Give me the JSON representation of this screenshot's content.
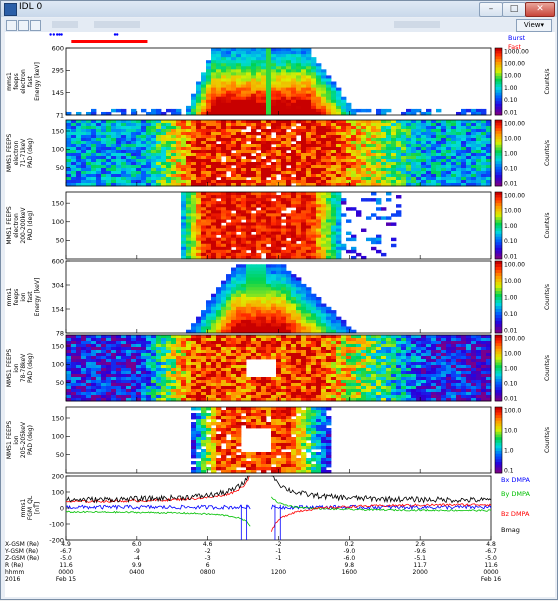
{
  "window": {
    "title": "IDL 0"
  },
  "toolbar": {
    "view_label": "View"
  },
  "legend": {
    "burst": "Burst",
    "fast": "Fast",
    "burst_color": "#0000ff",
    "fast_color": "#ff0000"
  },
  "colors": {
    "bx": "#0000ff",
    "by": "#00c000",
    "bz": "#ff0000",
    "bmag": "#000000"
  },
  "chart_data": [
    {
      "type": "heatmap",
      "id": "p1",
      "ylabel_lines": [
        "mms1",
        "feeps",
        "electron",
        "fast",
        "Energy [keV]"
      ],
      "yticks": [
        "600",
        "295",
        "145",
        "71"
      ],
      "cbar_ticks": [
        "1000.00",
        "100.00",
        "10.00",
        "1.00",
        "0.10",
        "0.01"
      ],
      "cbar_label": "Counts/s",
      "ylim": [
        71,
        600
      ],
      "log_y": true
    },
    {
      "type": "heatmap",
      "id": "p2",
      "ylabel_lines": [
        "MMS1 FEEPS",
        "electron",
        "71-71keV",
        "PAD (deg)"
      ],
      "yticks": [
        "150",
        "100",
        "50"
      ],
      "cbar_ticks": [
        "100.00",
        "10.00",
        "1.00",
        "0.10",
        "0.01"
      ],
      "cbar_label": "Counts/s",
      "ylim": [
        0,
        180
      ]
    },
    {
      "type": "heatmap",
      "id": "p3",
      "ylabel_lines": [
        "MMS1 FEEPS",
        "electron",
        "200-200keV",
        "PAD (deg)"
      ],
      "yticks": [
        "150",
        "100",
        "50"
      ],
      "cbar_ticks": [
        "100.00",
        "10.00",
        "1.00",
        "0.10",
        "0.01"
      ],
      "cbar_label": "Counts/s",
      "ylim": [
        0,
        180
      ]
    },
    {
      "type": "heatmap",
      "id": "p4",
      "ylabel_lines": [
        "mms1",
        "feeps",
        "ion",
        "fast",
        "Energy [keV]"
      ],
      "yticks": [
        "600",
        "304",
        "154",
        "78"
      ],
      "cbar_ticks": [
        "100.00",
        "10.00",
        "1.00",
        "0.10",
        "0.01"
      ],
      "cbar_label": "Counts/s",
      "ylim": [
        78,
        600
      ],
      "log_y": true
    },
    {
      "type": "heatmap",
      "id": "p5",
      "ylabel_lines": [
        "MMS1 FEEPS",
        "ion",
        "78-78keV",
        "PAD (deg)"
      ],
      "yticks": [
        "150",
        "100",
        "50"
      ],
      "cbar_ticks": [
        "100.00",
        "10.00",
        "1.00",
        "0.10",
        "0.01"
      ],
      "cbar_label": "Counts/s",
      "ylim": [
        0,
        180
      ]
    },
    {
      "type": "heatmap",
      "id": "p6",
      "ylabel_lines": [
        "MMS1 FEEPS",
        "ion",
        "205-205keV",
        "PAD (deg)"
      ],
      "yticks": [
        "150",
        "100",
        "50"
      ],
      "cbar_ticks": [
        "100.0",
        "10.0",
        "1.0",
        "0.1"
      ],
      "cbar_label": "Counts/s",
      "ylim": [
        0,
        180
      ]
    },
    {
      "type": "line",
      "id": "p7",
      "ylabel_lines": [
        "mms1",
        "FGM_QL",
        "[nT]"
      ],
      "yticks": [
        "200",
        "100",
        "0",
        "-100",
        "-200"
      ],
      "ylim": [
        -200,
        200
      ],
      "series": [
        {
          "name": "Bx DMPA",
          "color_key": "bx"
        },
        {
          "name": "By DMPA",
          "color_key": "by"
        },
        {
          "name": "Bz DMPA",
          "color_key": "bz"
        },
        {
          "name": "Bmag",
          "color_key": "bmag"
        }
      ]
    }
  ],
  "x_axis": {
    "xticks": [
      {
        "x_hhmm": "0000",
        "rows": [
          "4.9",
          "-6.7",
          "-5.0",
          "11.6",
          "0000",
          "Feb 15"
        ]
      },
      {
        "x_hhmm": "0400",
        "rows": [
          "6.0",
          "-9",
          "-4",
          "9.9",
          "0400",
          ""
        ]
      },
      {
        "x_hhmm": "0800",
        "rows": [
          "4.6",
          "-2",
          "-3",
          "6",
          "0800",
          ""
        ]
      },
      {
        "x_hhmm": "1200",
        "rows": [
          "-2",
          "-1",
          "-1",
          "",
          "1200",
          ""
        ]
      },
      {
        "x_hhmm": "1600",
        "rows": [
          "0.2",
          "-9.0",
          "-6.0",
          "9.8",
          "1600",
          ""
        ]
      },
      {
        "x_hhmm": "2000",
        "rows": [
          "2.6",
          "-9.6",
          "-5.1",
          "11.7",
          "2000",
          ""
        ]
      },
      {
        "x_hhmm": "2400",
        "rows": [
          "4.8",
          "-6.7",
          "-5.0",
          "11.6",
          "0000",
          "Feb 16"
        ]
      }
    ],
    "row_labels": [
      "X-GSM (Re)",
      "Y-GSM (Re)",
      "Z-GSM (Re)",
      "R (Re)",
      "hhmm",
      "2016"
    ]
  }
}
